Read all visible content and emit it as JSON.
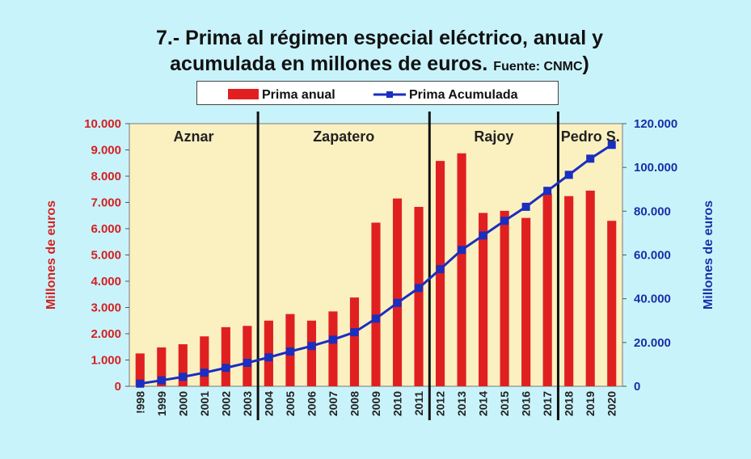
{
  "title_line1": "7.- Prima al régimen especial  eléctrico, anual y",
  "title_line2": "acumulada en millones de euros.",
  "source": "Fuente: CNMC",
  "title_close": ")",
  "colors": {
    "background": "#c9f3fb",
    "plot_area": "#fbf0c0",
    "bars": "#e02020",
    "line": "#1a2ec0",
    "left_axis_text": "#d42020",
    "right_axis_text": "#1a2ea8"
  },
  "chart_data": {
    "type": "bar",
    "categories": [
      "1998",
      "1999",
      "2000",
      "2001",
      "2002",
      "2003",
      "2004",
      "2005",
      "2006",
      "2007",
      "2008",
      "2009",
      "2010",
      "2011",
      "2012",
      "2013",
      "2014",
      "2015",
      "2016",
      "2017",
      "2018",
      "2019",
      "2020"
    ],
    "category_labels": [
      "!998",
      "1999",
      "2000",
      "2001",
      "2002",
      "2003",
      "2004",
      "2005",
      "2006",
      "2007",
      "2008",
      "2009",
      "2010",
      "2011",
      "2012",
      "2013",
      "2014",
      "2015",
      "2016",
      "2017",
      "2018",
      "2019",
      "2020"
    ],
    "series": [
      {
        "name": "Prima anual",
        "type": "bar",
        "axis": "left",
        "values": [
          1250,
          1480,
          1600,
          1900,
          2250,
          2300,
          2500,
          2750,
          2500,
          2850,
          3380,
          6230,
          7150,
          6830,
          8580,
          8870,
          6600,
          6680,
          6410,
          7330,
          7240,
          7450,
          6300
        ]
      },
      {
        "name": "Prima Acumulada",
        "type": "line",
        "axis": "right",
        "values": [
          1200,
          2700,
          4300,
          6200,
          8400,
          10700,
          13200,
          15900,
          18400,
          21300,
          24700,
          30900,
          38100,
          44900,
          53500,
          62300,
          68900,
          75600,
          82000,
          89300,
          96600,
          104000,
          110300
        ]
      }
    ],
    "ylabel": "Millones de euros",
    "y2label": "Millones de euros",
    "ylim": [
      0,
      10000
    ],
    "y2lim": [
      0,
      120000
    ],
    "yticks": [
      "0",
      "1.000",
      "2.000",
      "3.000",
      "4.000",
      "5.000",
      "6.000",
      "7.000",
      "8.000",
      "9.000",
      "10.000"
    ],
    "y2ticks": [
      "0",
      "20.000",
      "40.000",
      "60.000",
      "80.000",
      "100.000",
      "120.000"
    ],
    "eras": [
      {
        "label": "Aznar",
        "start": "1998"
      },
      {
        "label": "Zapatero",
        "start": "2004"
      },
      {
        "label": "Rajoy",
        "start": "2012"
      },
      {
        "label": "Pedro S.",
        "start": "2018"
      }
    ],
    "legend": [
      "Prima anual",
      "Prima Acumulada"
    ],
    "legend_placement": "top"
  }
}
